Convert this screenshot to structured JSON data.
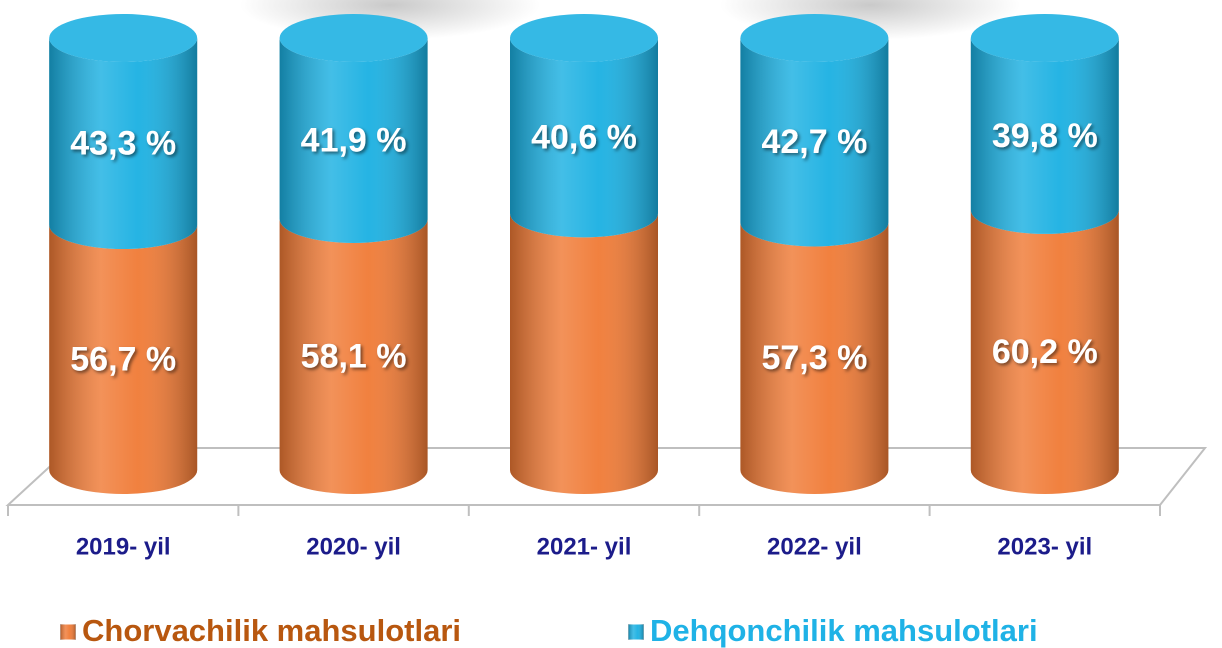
{
  "chart_data": {
    "type": "stacked_cylinder",
    "categories": [
      "2019- yil",
      "2020- yil",
      "2021- yil",
      "2022- yil",
      "2023- yil"
    ],
    "series": [
      {
        "name": "Chorvachilik mahsulotlari",
        "color": "#f07a35",
        "legend_text_color": "#b8570f",
        "values": [
          56.7,
          58.1,
          59.4,
          57.3,
          60.2
        ],
        "value_labels": [
          "56,7 %",
          "58,1 %",
          null,
          "57,3 %",
          "60,2 %"
        ]
      },
      {
        "name": "Dehqonchilik mahsulotlari",
        "color": "#1ab0e2",
        "legend_text_color": "#1fb2e6",
        "values": [
          43.3,
          41.9,
          40.6,
          42.7,
          39.8
        ],
        "value_labels": [
          "43,3 %",
          "41,9 %",
          "40,6 %",
          "42,7 %",
          "39,8 %"
        ]
      }
    ],
    "ylim": [
      0,
      100
    ],
    "category_color": "#1c1c8a"
  }
}
